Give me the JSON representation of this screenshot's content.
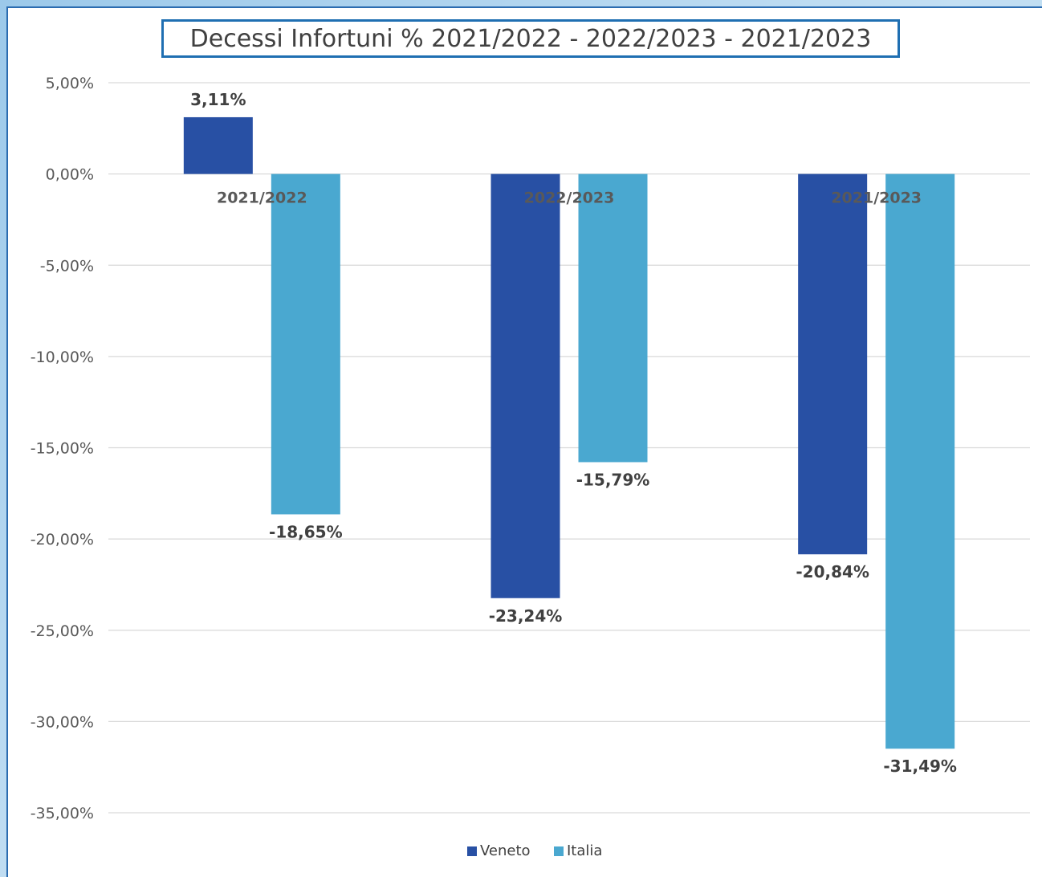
{
  "chart_data": {
    "type": "bar",
    "title": "Decessi Infortuni % 2021/2022 - 2022/2023 - 2021/2023",
    "categories": [
      "2021/2022",
      "2022/2023",
      "2021/2023"
    ],
    "series": [
      {
        "name": "Veneto",
        "color": "#2850a4",
        "values": [
          3.11,
          -23.24,
          -20.84
        ],
        "labels": [
          "3,11%",
          "-23,24%",
          "-20,84%"
        ]
      },
      {
        "name": "Italia",
        "color": "#4aa8d0",
        "values": [
          -18.65,
          -15.79,
          -31.49
        ],
        "labels": [
          "-18,65%",
          "-15,79%",
          "-31,49%"
        ]
      }
    ],
    "yticks": [
      5,
      0,
      -5,
      -10,
      -15,
      -20,
      -25,
      -30,
      -35
    ],
    "ytick_labels": [
      "5,00%",
      "0,00%",
      "-5,00%",
      "-10,00%",
      "-15,00%",
      "-20,00%",
      "-25,00%",
      "-30,00%",
      "-35,00%"
    ],
    "ylim": [
      -35,
      5
    ],
    "grid": true,
    "legend": "bottom"
  }
}
